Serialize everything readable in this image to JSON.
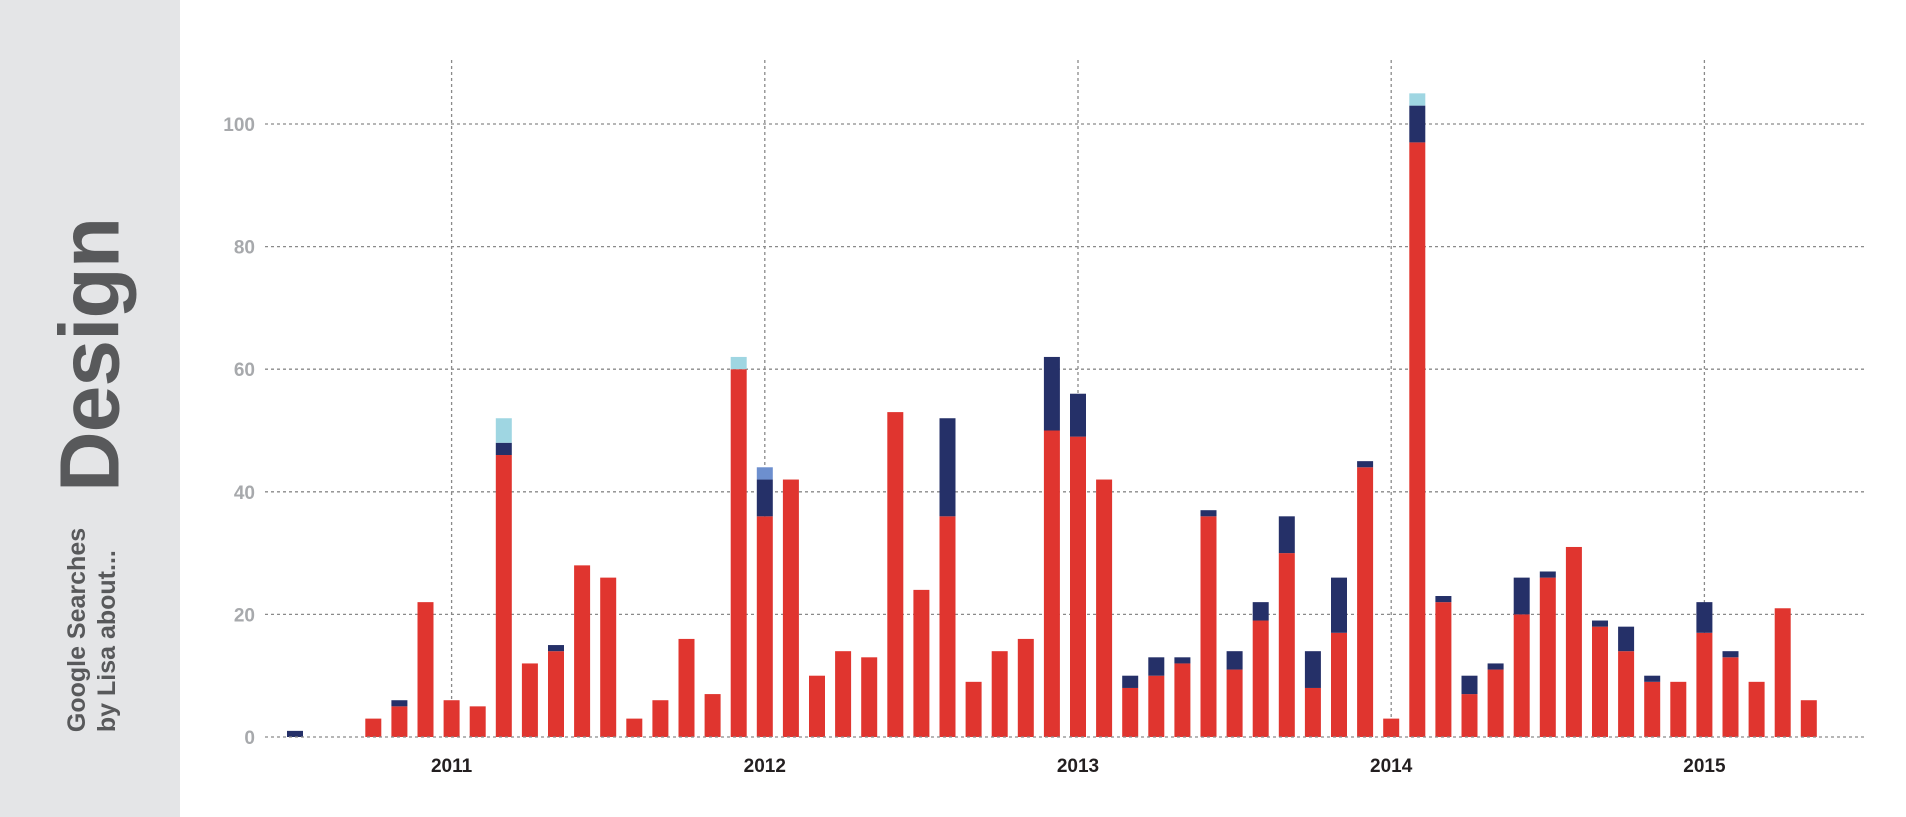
{
  "sidebar": {
    "title": "Design",
    "subtitle_line1": "Google Searches",
    "subtitle_line2": "by Lisa about..."
  },
  "colors": {
    "series": [
      "#e0352f",
      "#253068",
      "#6d8fce",
      "#9fd6e2"
    ],
    "grid": "#8a8a8a",
    "sidebar_bg": "#e4e5e7"
  },
  "chart_data": {
    "type": "bar",
    "stacked": true,
    "x_unit": "month",
    "start_month": "2010-07",
    "ylim": [
      0,
      110
    ],
    "yticks": [
      0,
      20,
      40,
      60,
      80,
      100
    ],
    "xticks": [
      {
        "label": "2011",
        "month": "2011-01"
      },
      {
        "label": "2012",
        "month": "2012-01"
      },
      {
        "label": "2013",
        "month": "2013-01"
      },
      {
        "label": "2014",
        "month": "2014-01"
      },
      {
        "label": "2015",
        "month": "2015-01"
      }
    ],
    "grid": true,
    "legend": "none",
    "categories": [
      "2010-07",
      "2010-08",
      "2010-09",
      "2010-10",
      "2010-11",
      "2010-12",
      "2011-01",
      "2011-02",
      "2011-03",
      "2011-04",
      "2011-05",
      "2011-06",
      "2011-07",
      "2011-08",
      "2011-09",
      "2011-10",
      "2011-11",
      "2011-12",
      "2012-01",
      "2012-02",
      "2012-03",
      "2012-04",
      "2012-05",
      "2012-06",
      "2012-07",
      "2012-08",
      "2012-09",
      "2012-10",
      "2012-11",
      "2012-12",
      "2013-01",
      "2013-02",
      "2013-03",
      "2013-04",
      "2013-05",
      "2013-06",
      "2013-07",
      "2013-08",
      "2013-09",
      "2013-10",
      "2013-11",
      "2013-12",
      "2014-01",
      "2014-02",
      "2014-03",
      "2014-04",
      "2014-05",
      "2014-06",
      "2014-07",
      "2014-08",
      "2014-09",
      "2014-10",
      "2014-11",
      "2014-12",
      "2015-01",
      "2015-02",
      "2015-03",
      "2015-04",
      "2015-05"
    ],
    "series": [
      {
        "values": [
          0,
          0,
          0,
          3,
          5,
          22,
          6,
          5,
          46,
          12,
          14,
          28,
          26,
          3,
          6,
          16,
          7,
          60,
          36,
          42,
          10,
          14,
          13,
          53,
          24,
          36,
          9,
          14,
          16,
          50,
          49,
          42,
          8,
          10,
          12,
          36,
          11,
          19,
          30,
          8,
          17,
          44,
          3,
          97,
          22,
          7,
          11,
          20,
          26,
          31,
          18,
          14,
          9,
          9,
          17,
          13,
          9,
          21,
          6
        ]
      },
      {
        "values": [
          1,
          0,
          0,
          0,
          1,
          0,
          0,
          0,
          2,
          0,
          1,
          0,
          0,
          0,
          0,
          0,
          0,
          0,
          6,
          0,
          0,
          0,
          0,
          0,
          0,
          16,
          0,
          0,
          0,
          12,
          7,
          0,
          2,
          3,
          1,
          1,
          3,
          3,
          6,
          6,
          9,
          1,
          0,
          6,
          1,
          3,
          1,
          6,
          1,
          0,
          1,
          4,
          1,
          0,
          5,
          1,
          0,
          0,
          0
        ]
      },
      {
        "values": [
          0,
          0,
          0,
          0,
          0,
          0,
          0,
          0,
          0,
          0,
          0,
          0,
          0,
          0,
          0,
          0,
          0,
          0,
          2,
          0,
          0,
          0,
          0,
          0,
          0,
          0,
          0,
          0,
          0,
          0,
          0,
          0,
          0,
          0,
          0,
          0,
          0,
          0,
          0,
          0,
          0,
          0,
          0,
          0,
          0,
          0,
          0,
          0,
          0,
          0,
          0,
          0,
          0,
          0,
          0,
          0,
          0,
          0,
          0
        ]
      },
      {
        "values": [
          0,
          0,
          0,
          0,
          0,
          0,
          0,
          0,
          4,
          0,
          0,
          0,
          0,
          0,
          0,
          0,
          0,
          2,
          0,
          0,
          0,
          0,
          0,
          0,
          0,
          0,
          0,
          0,
          0,
          0,
          0,
          0,
          0,
          0,
          0,
          0,
          0,
          0,
          0,
          0,
          0,
          0,
          0,
          2,
          0,
          0,
          0,
          0,
          0,
          0,
          0,
          0,
          0,
          0,
          0,
          0,
          0,
          0,
          0
        ]
      }
    ]
  }
}
